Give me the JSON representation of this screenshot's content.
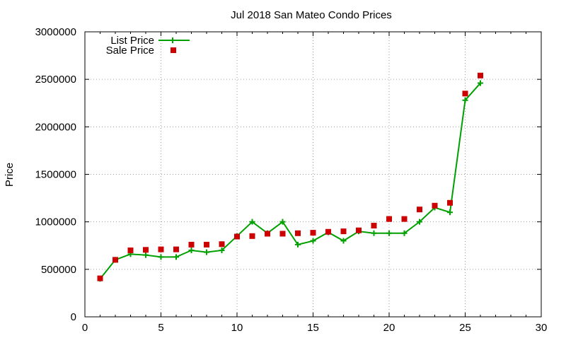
{
  "chart_data": {
    "type": "line",
    "title": "Jul 2018 San Mateo Condo Prices",
    "xlabel": "",
    "ylabel": "Price",
    "xlim": [
      0,
      30
    ],
    "ylim": [
      0,
      3000000
    ],
    "x_ticks": [
      "0",
      "5",
      "10",
      "15",
      "20",
      "25",
      "30"
    ],
    "y_ticks": [
      "0",
      "500000",
      "1000000",
      "1500000",
      "2000000",
      "2500000",
      "3000000"
    ],
    "grid": true,
    "legend_position": "top-left",
    "series": [
      {
        "name": "List Price",
        "style": "line+plus-markers",
        "color": "#00a000",
        "x": [
          1,
          2,
          3,
          4,
          5,
          6,
          7,
          8,
          9,
          10,
          11,
          12,
          13,
          14,
          15,
          16,
          17,
          18,
          19,
          20,
          21,
          22,
          23,
          24,
          25,
          26
        ],
        "y": [
          400000,
          600000,
          660000,
          650000,
          630000,
          630000,
          700000,
          680000,
          700000,
          850000,
          1000000,
          880000,
          1000000,
          760000,
          800000,
          890000,
          800000,
          900000,
          880000,
          880000,
          880000,
          1000000,
          1150000,
          1100000,
          2280000,
          2460000
        ]
      },
      {
        "name": "Sale Price",
        "style": "square-markers",
        "color": "#cc0000",
        "x": [
          1,
          2,
          3,
          4,
          5,
          6,
          7,
          8,
          9,
          10,
          11,
          12,
          13,
          14,
          15,
          16,
          17,
          18,
          19,
          20,
          21,
          22,
          23,
          24,
          25,
          26
        ],
        "y": [
          405000,
          600000,
          700000,
          705000,
          710000,
          710000,
          760000,
          760000,
          765000,
          845000,
          850000,
          875000,
          875000,
          880000,
          885000,
          895000,
          900000,
          910000,
          960000,
          1030000,
          1030000,
          1130000,
          1170000,
          1200000,
          2350000,
          2540000
        ]
      }
    ]
  }
}
